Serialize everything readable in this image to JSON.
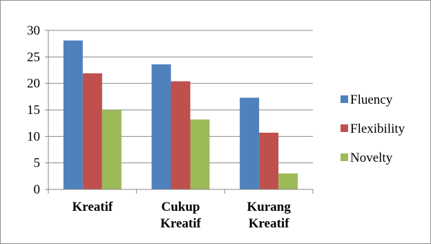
{
  "chart_data": {
    "type": "bar",
    "categories": [
      [
        "Kreatif"
      ],
      [
        "Cukup",
        "Kreatif"
      ],
      [
        "Kurang",
        "Kreatif"
      ]
    ],
    "series": [
      {
        "name": "Fluency",
        "color": "#4f81bd",
        "values": [
          28.1,
          23.6,
          17.3
        ]
      },
      {
        "name": "Flexibility",
        "color": "#c0504d",
        "values": [
          21.9,
          20.4,
          10.7
        ]
      },
      {
        "name": "Novelty",
        "color": "#9bbb59",
        "values": [
          15.0,
          13.2,
          3.0
        ]
      }
    ],
    "ylim": [
      0,
      30
    ],
    "yticks": [
      0,
      5,
      10,
      15,
      20,
      25,
      30
    ],
    "grid": true,
    "legend": "right"
  }
}
